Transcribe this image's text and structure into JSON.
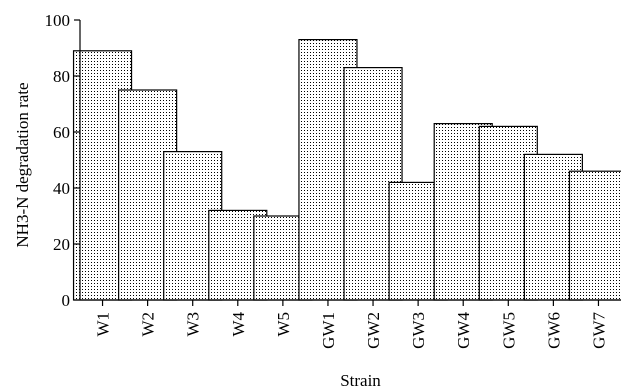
{
  "chart_data": {
    "type": "bar",
    "categories": [
      "W1",
      "W2",
      "W3",
      "W4",
      "W5",
      "GW1",
      "GW2",
      "GW3",
      "GW4",
      "GW5",
      "GW6",
      "GW7"
    ],
    "values": [
      89,
      75,
      53,
      32,
      30,
      93,
      83,
      42,
      63,
      62,
      52,
      46
    ],
    "xlabel": "Strain",
    "ylabel": "NH3-N degradation rate",
    "ylim": [
      0,
      100
    ],
    "yticks": [
      0,
      20,
      40,
      60,
      80,
      100
    ],
    "bar_fill": "dotted pattern",
    "grid": false,
    "legend": "none"
  }
}
